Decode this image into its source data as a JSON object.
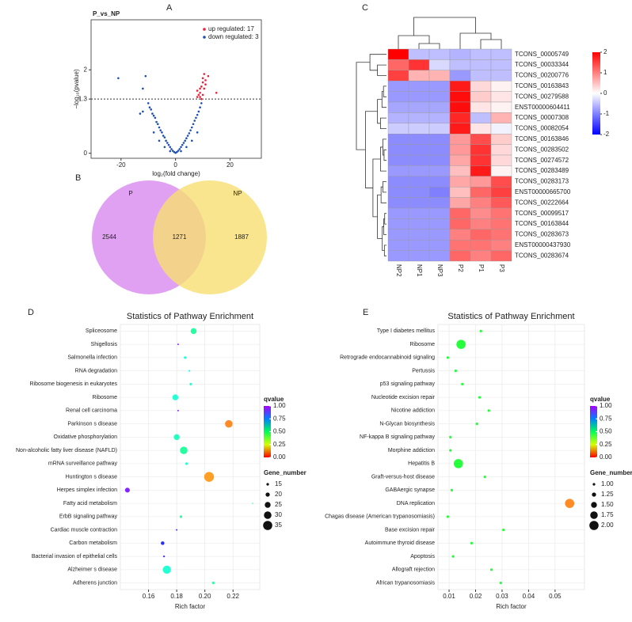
{
  "chart_data": [
    {
      "panel": "A",
      "type": "scatter",
      "title": "P_vs_NP",
      "x_label": "log₂(fold change)",
      "y_label": "−log₁₀(pvalue)",
      "xlim": [
        -31,
        31.5
      ],
      "ylim": [
        -0.12,
        3.2
      ],
      "xticks": [
        -20,
        0,
        20
      ],
      "yticks": [
        0,
        1.3,
        2
      ],
      "hline": 1.3,
      "legend": "upper right",
      "series": [
        {
          "color": "#1f4fb4",
          "x": [
            -10,
            -9.5,
            -9,
            -8.5,
            -8,
            -7.5,
            -7,
            -6.5,
            -6,
            -5.5,
            -5,
            -4.5,
            -4,
            -3.5,
            -3,
            -2.5,
            -2,
            -1.5,
            -1,
            -0.5,
            0,
            0.5,
            1,
            1.5,
            2,
            2.5,
            3,
            3.5,
            4,
            4.5,
            5,
            5.5,
            6,
            6.5,
            7,
            7.5,
            8,
            8.5,
            9,
            9.5,
            -6,
            -4,
            -2,
            2,
            4,
            6,
            8,
            -8,
            -13,
            -12
          ],
          "y": [
            1.2,
            1.1,
            1.05,
            0.95,
            0.9,
            0.85,
            0.75,
            0.7,
            0.62,
            0.55,
            0.5,
            0.42,
            0.38,
            0.3,
            0.25,
            0.2,
            0.15,
            0.1,
            0.06,
            0.03,
            0.01,
            0.03,
            0.06,
            0.1,
            0.15,
            0.2,
            0.25,
            0.3,
            0.36,
            0.42,
            0.48,
            0.55,
            0.62,
            0.7,
            0.78,
            0.85,
            0.92,
            1.0,
            1.1,
            1.2,
            0.3,
            0.15,
            0.05,
            0.05,
            0.15,
            0.3,
            0.5,
            0.5,
            0.95,
            1.0
          ]
        },
        {
          "name": "up regulated: 17",
          "color": "#e8203a",
          "x": [
            8,
            8.5,
            9,
            9,
            9.5,
            10,
            10,
            10.5,
            11,
            8,
            9,
            10,
            11,
            12,
            9.5,
            10.5,
            15
          ],
          "y": [
            1.35,
            1.4,
            1.45,
            1.55,
            1.6,
            1.7,
            1.8,
            1.9,
            1.75,
            1.5,
            1.35,
            1.4,
            1.65,
            1.85,
            1.3,
            1.55,
            1.45
          ]
        },
        {
          "name": "down regulated: 3",
          "color": "#1f4fb4",
          "x": [
            -21,
            -11,
            -12
          ],
          "y": [
            1.8,
            1.85,
            1.55
          ]
        }
      ]
    },
    {
      "panel": "B",
      "type": "venn",
      "sets": [
        "P",
        "NP"
      ],
      "colors": [
        "#d98af0",
        "#f7df72"
      ],
      "values": [
        2544,
        1271,
        1887
      ]
    },
    {
      "panel": "C",
      "type": "heatmap",
      "columns": [
        "NP2",
        "NP1",
        "NP3",
        "P2",
        "P1",
        "P3"
      ],
      "rows": [
        "TCONS_00005749",
        "TCONS_00033344",
        "TCONS_00200776",
        "TCONS_00163843",
        "TCONS_00279588",
        "ENST00000604411",
        "TCONS_00007308",
        "TCONS_00082054",
        "TCONS_00163846",
        "TCONS_00283502",
        "TCONS_00274572",
        "TCONS_00283489",
        "TCONS_00283173",
        "ENST00000665700",
        "TCONS_00222664",
        "TCONS_00099517",
        "TCONS_00163844",
        "TCONS_00283673",
        "ENST00000437930",
        "TCONS_00283674"
      ],
      "values": [
        [
          2.0,
          -0.5,
          -0.5,
          -0.6,
          -0.5,
          -0.5
        ],
        [
          1.2,
          1.6,
          -0.3,
          -0.5,
          -0.5,
          -0.5
        ],
        [
          1.5,
          0.6,
          0.6,
          -0.8,
          -0.5,
          -0.5
        ],
        [
          -0.8,
          -0.8,
          -0.8,
          1.8,
          0.3,
          0.1
        ],
        [
          -0.8,
          -0.8,
          -0.8,
          1.9,
          0.4,
          0.2
        ],
        [
          -0.7,
          -0.7,
          -0.7,
          1.9,
          0.2,
          0.1
        ],
        [
          -0.6,
          -0.6,
          -0.6,
          1.7,
          -0.5,
          0.6
        ],
        [
          -0.4,
          -0.4,
          -0.4,
          1.8,
          0.2,
          -0.1
        ],
        [
          -0.9,
          -0.9,
          -0.9,
          0.8,
          1.4,
          0.4
        ],
        [
          -0.9,
          -0.9,
          -0.9,
          0.8,
          1.6,
          0.3
        ],
        [
          -0.9,
          -0.9,
          -0.9,
          0.7,
          1.6,
          0.3
        ],
        [
          -0.8,
          -0.8,
          -0.8,
          0.5,
          1.8,
          0.1
        ],
        [
          -0.9,
          -0.9,
          -0.9,
          0.7,
          0.8,
          1.4
        ],
        [
          -0.9,
          -0.9,
          -1.0,
          0.5,
          1.2,
          1.5
        ],
        [
          -0.9,
          -0.9,
          -0.9,
          0.7,
          1.0,
          1.3
        ],
        [
          -0.8,
          -0.8,
          -0.8,
          1.2,
          0.9,
          1.1
        ],
        [
          -0.8,
          -0.8,
          -0.8,
          1.2,
          1.0,
          1.1
        ],
        [
          -0.8,
          -0.8,
          -0.8,
          1.0,
          1.2,
          1.1
        ],
        [
          -0.8,
          -0.8,
          -0.8,
          1.1,
          1.1,
          1.0
        ],
        [
          -0.8,
          -0.8,
          -0.8,
          1.2,
          1.0,
          1.2
        ]
      ],
      "colorbar_ticks": [
        2,
        1,
        0,
        -1,
        -2
      ],
      "colors": [
        "#0000ff",
        "#ffffff",
        "#ff0000"
      ]
    },
    {
      "panel": "D",
      "type": "bubble",
      "title": "Statistics of Pathway Enrichment",
      "x_label": "Rich factor",
      "grid": true,
      "categories": [
        "Spliceosome",
        "Shigellosis",
        "Salmonella infection",
        "RNA degradation",
        "Ribosome biogenesis in eukaryotes",
        "Ribosome",
        "Renal cell carcinoma",
        "Parkinson s disease",
        "Oxidative phosphorylation",
        "Non-alcoholic fatty liver disease (NAFLD)",
        "mRNA surveillance pathway",
        "Huntington s disease",
        "Herpes simplex infection",
        "Fatty acid metabolism",
        "ErbB signaling pathway",
        "Cardiac muscle contraction",
        "Carbon metabolism",
        "Bacterial invasion of epithelial cells",
        "Alzheimer s disease",
        "Adherens junction"
      ],
      "x": [
        0.192,
        0.181,
        0.186,
        0.189,
        0.19,
        0.179,
        0.181,
        0.217,
        0.18,
        0.185,
        0.187,
        0.203,
        0.145,
        0.234,
        0.183,
        0.18,
        0.17,
        0.171,
        0.173,
        0.206
      ],
      "qvalue": [
        0.55,
        0.95,
        0.6,
        0.65,
        0.6,
        0.6,
        0.95,
        0.1,
        0.58,
        0.55,
        0.6,
        0.12,
        0.95,
        0.6,
        0.55,
        0.9,
        0.85,
        0.9,
        0.6,
        0.55
      ],
      "gene_number": [
        25,
        12,
        15,
        13,
        15,
        25,
        12,
        30,
        25,
        30,
        15,
        37,
        22,
        11,
        15,
        12,
        18,
        13,
        32,
        15
      ],
      "xlim": [
        0.14,
        0.239
      ],
      "xticks": [
        0.16,
        0.18,
        {
          "value": 0.2,
          "label": "0.20"
        },
        0.22
      ],
      "color_label": "qvalue",
      "color_ticks": [
        {
          "value": 1,
          "label": "1.00"
        },
        0.75,
        {
          "value": 0.5,
          "label": "0.50"
        },
        0.25,
        {
          "value": 0,
          "label": "0.00"
        }
      ],
      "size_label": "Gene_number",
      "size_ticks": [
        15,
        20,
        25,
        30,
        35
      ]
    },
    {
      "panel": "E",
      "type": "bubble",
      "title": "Statistics of Pathway Enrichment",
      "x_label": "Rich factor",
      "grid": true,
      "categories": [
        "Type I diabetes mellitus",
        "Ribosome",
        "Retrograde endocannabinoid signaling",
        "Pertussis",
        "p53 signaling pathway",
        "Nucleotide excision repair",
        "Nicotine addiction",
        "N-Glycan biosynthesis",
        "NF-kappa B signaling pathway",
        "Morphine addiction",
        "Hepatitis B",
        "Graft-versus-host disease",
        "GABAergic synapse",
        "DNA replication",
        "Chagas disease (American trypanosomiasis)",
        "Base excision repair",
        "Autoimmune thyroid disease",
        "Apoptosis",
        "Allograft rejection",
        "African trypanosomiasis"
      ],
      "x": [
        0.022,
        0.0145,
        0.0095,
        0.0125,
        0.015,
        0.0215,
        0.025,
        0.0205,
        0.0105,
        0.0105,
        0.0135,
        0.0235,
        0.011,
        0.0555,
        0.0095,
        0.0305,
        0.0185,
        0.0115,
        0.026,
        0.0295
      ],
      "qvalue": [
        0.45,
        0.45,
        0.45,
        0.45,
        0.45,
        0.45,
        0.45,
        0.45,
        0.45,
        0.45,
        0.45,
        0.45,
        0.45,
        0.1,
        0.45,
        0.45,
        0.45,
        0.45,
        0.45,
        0.45
      ],
      "gene_number": [
        1,
        2,
        1,
        1,
        1,
        1,
        1,
        1,
        1,
        1,
        2,
        1,
        1,
        2,
        1,
        1,
        1,
        1,
        1,
        1
      ],
      "xlim": [
        0.0058,
        0.0611
      ],
      "xticks": [
        0.01,
        0.02,
        0.03,
        0.04,
        0.05
      ],
      "color_label": "qvalue",
      "color_ticks": [
        {
          "value": 1,
          "label": "1.00"
        },
        0.75,
        {
          "value": 0.5,
          "label": "0.50"
        },
        0.25,
        {
          "value": 0,
          "label": "0.00"
        }
      ],
      "size_label": "Gene_number",
      "size_ticks": [
        {
          "value": 1,
          "label": "1.00"
        },
        1.25,
        {
          "value": 1.5,
          "label": "1.50"
        },
        1.75,
        {
          "value": 2,
          "label": "2.00"
        }
      ]
    }
  ]
}
